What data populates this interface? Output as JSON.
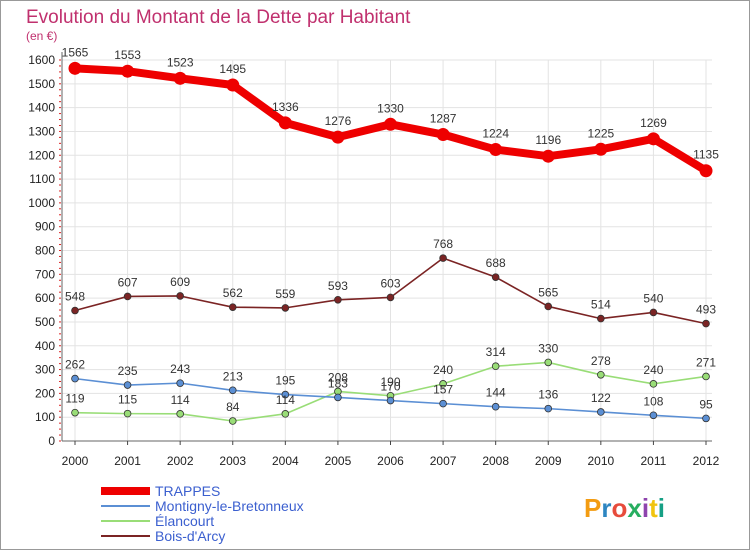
{
  "chart_data": {
    "type": "line",
    "title": "Evolution du Montant de la Dette par Habitant",
    "subtitle": "(en €)",
    "categories": [
      "2000",
      "2001",
      "2002",
      "2003",
      "2004",
      "2005",
      "2006",
      "2007",
      "2008",
      "2009",
      "2010",
      "2011",
      "2012"
    ],
    "ylim": [
      0,
      1600
    ],
    "yticks": [
      0,
      100,
      200,
      300,
      400,
      500,
      600,
      700,
      800,
      900,
      1000,
      1100,
      1200,
      1300,
      1400,
      1500,
      1600
    ],
    "grid": true,
    "legend_position": "bottom-left",
    "series": [
      {
        "name": "TRAPPES",
        "color": "#ee0000",
        "values": [
          1565,
          1553,
          1523,
          1495,
          1336,
          1276,
          1330,
          1287,
          1224,
          1196,
          1225,
          1269,
          1135
        ]
      },
      {
        "name": "Montigny-le-Bretonneux",
        "color": "#5b8fd4",
        "values": [
          262,
          235,
          243,
          213,
          195,
          183,
          170,
          157,
          144,
          136,
          122,
          108,
          95
        ]
      },
      {
        "name": "Élancourt",
        "color": "#99dd77",
        "values": [
          119,
          115,
          114,
          84,
          114,
          208,
          190,
          240,
          314,
          330,
          278,
          240,
          271
        ]
      },
      {
        "name": "Bois-d'Arcy",
        "color": "#7b2424",
        "values": [
          548,
          607,
          609,
          562,
          559,
          593,
          603,
          768,
          688,
          565,
          514,
          540,
          493
        ]
      }
    ]
  },
  "brand": {
    "letters": [
      "P",
      "r",
      "o",
      "x",
      "i",
      "t",
      "i"
    ],
    "colors": [
      "#f39c12",
      "#2e86c1",
      "#e74c3c",
      "#27ae60",
      "#8e44ad",
      "#f1c40f",
      "#16a085"
    ]
  }
}
